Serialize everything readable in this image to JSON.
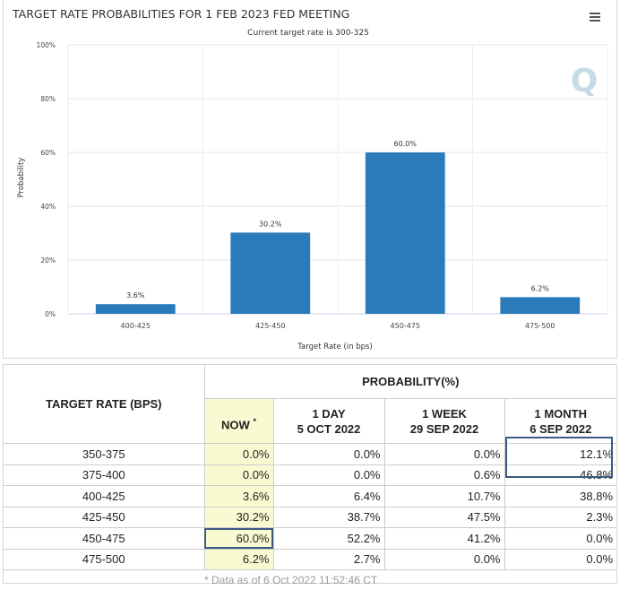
{
  "chart_data": {
    "type": "bar",
    "title": "TARGET RATE PROBABILITIES FOR 1 FEB 2023 FED MEETING",
    "subtitle": "Current target rate is 300-325",
    "categories": [
      "400-425",
      "425-450",
      "450-475",
      "475-500"
    ],
    "values": [
      3.6,
      30.2,
      60.0,
      6.2
    ],
    "data_labels": [
      "3.6%",
      "30.2%",
      "60.0%",
      "6.2%"
    ],
    "xlabel": "Target Rate (in bps)",
    "ylabel": "Probability",
    "ylim": [
      0,
      100
    ],
    "yticks": [
      0,
      20,
      40,
      60,
      80,
      100
    ],
    "ytick_labels": [
      "0%",
      "20%",
      "40%",
      "60%",
      "80%",
      "100%"
    ],
    "bar_color": "#2b7bba",
    "watermark": "Q"
  },
  "table": {
    "rate_header": "TARGET RATE (BPS)",
    "prob_header": "PROBABILITY(%)",
    "columns": [
      {
        "line1": "NOW",
        "sup": "*",
        "line2": ""
      },
      {
        "line1": "1 DAY",
        "line2": "5 OCT 2022"
      },
      {
        "line1": "1 WEEK",
        "line2": "29 SEP 2022"
      },
      {
        "line1": "1 MONTH",
        "line2": "6 SEP 2022"
      }
    ],
    "rows": [
      {
        "rate": "350-375",
        "values": [
          "0.0%",
          "0.0%",
          "0.0%",
          "12.1%"
        ]
      },
      {
        "rate": "375-400",
        "values": [
          "0.0%",
          "0.0%",
          "0.6%",
          "46.8%"
        ]
      },
      {
        "rate": "400-425",
        "values": [
          "3.6%",
          "6.4%",
          "10.7%",
          "38.8%"
        ]
      },
      {
        "rate": "425-450",
        "values": [
          "30.2%",
          "38.7%",
          "47.5%",
          "2.3%"
        ]
      },
      {
        "rate": "450-475",
        "values": [
          "60.0%",
          "52.2%",
          "41.2%",
          "0.0%"
        ]
      },
      {
        "rate": "475-500",
        "values": [
          "6.2%",
          "2.7%",
          "0.0%",
          "0.0%"
        ]
      }
    ],
    "footnote": "* Data as of 6 Oct 2022 11:52:46 CT",
    "now_highlight_color": "#fafad2",
    "box_color": "#3d5a80"
  }
}
